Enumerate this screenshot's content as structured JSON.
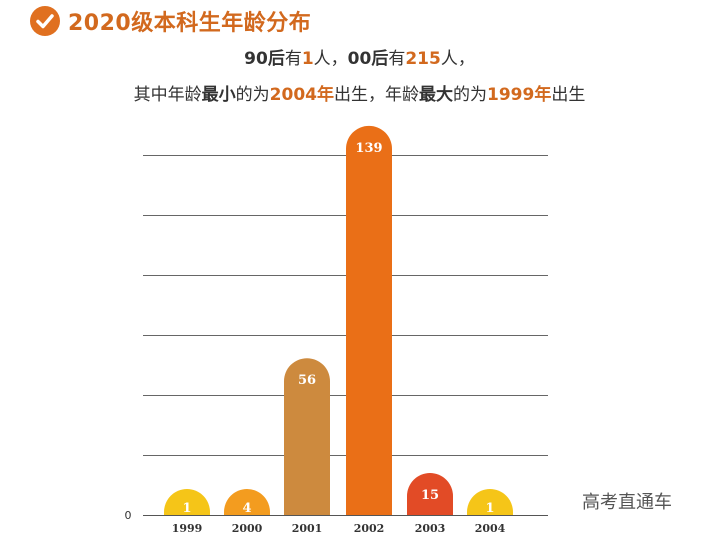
{
  "header": {
    "title": "2020级本科生年龄分布"
  },
  "summary": {
    "line1": {
      "a": "90后",
      "b": "有",
      "c": "1",
      "d": "人，",
      "e": "00后",
      "f": "有",
      "g": "215",
      "h": "人，"
    },
    "line2": {
      "a": "其中年龄",
      "b": "最小",
      "c": "的为",
      "d": "2004年",
      "e": "出生，年龄",
      "f": "最大",
      "g": "的为",
      "h": "1999年",
      "i": "出生"
    }
  },
  "watermark": "高考直通车",
  "colors": {
    "title": "#d2691e",
    "highlight": "#d2691e",
    "gridline": "#666666"
  },
  "chart_data": {
    "type": "bar",
    "title": "",
    "xlabel": "",
    "ylabel": "",
    "categories": [
      "1999",
      "2000",
      "2001",
      "2002",
      "2003",
      "2004"
    ],
    "values": [
      1,
      4,
      56,
      139,
      15,
      1
    ],
    "bar_colors": [
      "#f5c518",
      "#f39c1f",
      "#cd8a3e",
      "#ea6f17",
      "#e24b26",
      "#f5c518"
    ],
    "y_axis_label_shown": "0",
    "ylim": [
      0,
      150
    ],
    "grid": true,
    "legend": "none"
  }
}
